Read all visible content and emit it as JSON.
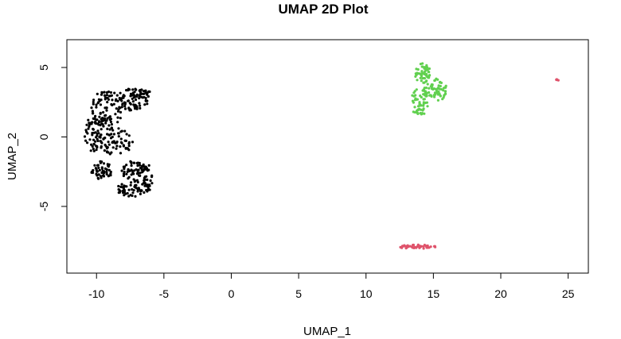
{
  "chart_data": {
    "type": "scatter",
    "title": "UMAP 2D Plot",
    "xlabel": "UMAP_1",
    "ylabel": "UMAP_2",
    "xlim": [
      -12.2,
      26.5
    ],
    "ylim": [
      -9.8,
      7.0
    ],
    "xticks": [
      -10,
      -5,
      0,
      5,
      10,
      15,
      20,
      25
    ],
    "yticks": [
      -5,
      0,
      5
    ],
    "grid": false,
    "legend": "none",
    "series": [
      {
        "color": "#000000",
        "clusters": [
          {
            "cx": -9.2,
            "cy": 2.0,
            "rx": 1.2,
            "ry": 1.4,
            "n": 95
          },
          {
            "cx": -7.3,
            "cy": 2.7,
            "rx": 1.2,
            "ry": 0.8,
            "n": 70
          },
          {
            "cx": -6.6,
            "cy": 3.2,
            "rx": 0.6,
            "ry": 0.4,
            "n": 22
          },
          {
            "cx": -10.2,
            "cy": 0.2,
            "rx": 0.7,
            "ry": 1.3,
            "n": 55
          },
          {
            "cx": -8.6,
            "cy": -0.3,
            "rx": 1.3,
            "ry": 1.0,
            "n": 70
          },
          {
            "cx": -9.6,
            "cy": -2.4,
            "rx": 0.8,
            "ry": 0.7,
            "n": 50
          },
          {
            "cx": -7.2,
            "cy": -2.4,
            "rx": 1.0,
            "ry": 0.7,
            "n": 55
          },
          {
            "cx": -7.3,
            "cy": -3.7,
            "rx": 1.3,
            "ry": 0.6,
            "n": 65
          },
          {
            "cx": -6.2,
            "cy": -2.9,
            "rx": 0.4,
            "ry": 0.9,
            "n": 25
          }
        ]
      },
      {
        "color": "#DF536B",
        "clusters": [
          {
            "cx": 13.8,
            "cy": -7.9,
            "rx": 1.4,
            "ry": 0.15,
            "n": 45
          },
          {
            "cx": 24.2,
            "cy": 4.1,
            "rx": 0.1,
            "ry": 0.1,
            "n": 4
          }
        ]
      },
      {
        "color": "#61D04F",
        "clusters": [
          {
            "cx": 14.2,
            "cy": 4.6,
            "rx": 0.6,
            "ry": 0.7,
            "n": 50
          },
          {
            "cx": 15.3,
            "cy": 3.4,
            "rx": 0.7,
            "ry": 0.8,
            "n": 50
          },
          {
            "cx": 14.0,
            "cy": 2.5,
            "rx": 0.7,
            "ry": 1.0,
            "n": 55
          },
          {
            "cx": 14.6,
            "cy": 3.5,
            "rx": 0.5,
            "ry": 0.6,
            "n": 25
          }
        ]
      }
    ]
  }
}
